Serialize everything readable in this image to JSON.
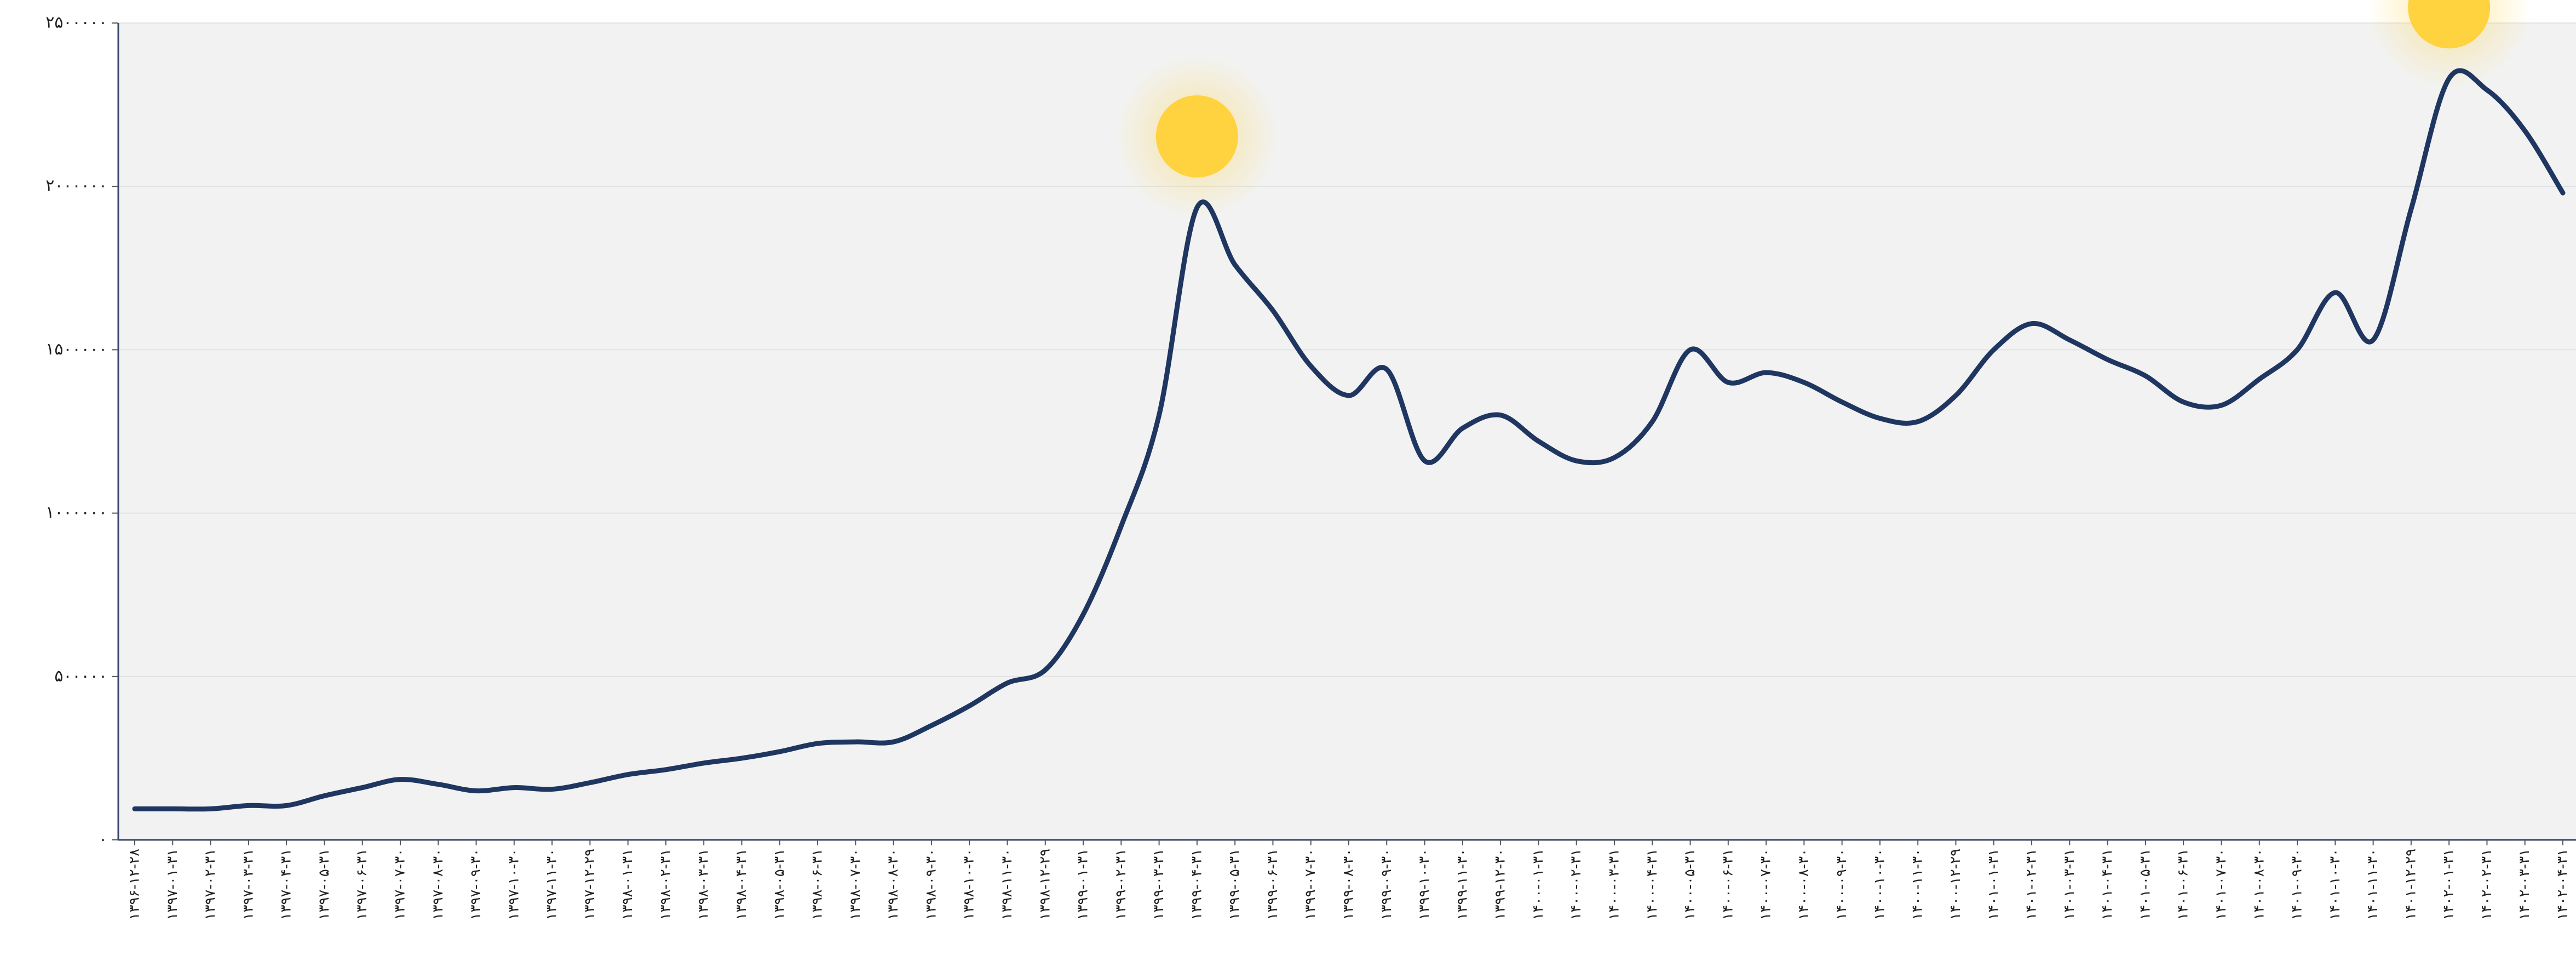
{
  "chart_data": {
    "type": "line",
    "categories": [
      "۱۳۹۶-۱۲-۲۸",
      "۱۳۹۷-۰۱-۳۱",
      "۱۳۹۷-۰۲-۳۱",
      "۱۳۹۷-۰۳-۳۱",
      "۱۳۹۷-۰۴-۳۱",
      "۱۳۹۷-۰۵-۳۱",
      "۱۳۹۷-۰۶-۳۱",
      "۱۳۹۷-۰۷-۳۰",
      "۱۳۹۷-۰۸-۳۰",
      "۱۳۹۷-۰۹-۳۰",
      "۱۳۹۷-۱۰-۳۰",
      "۱۳۹۷-۱۱-۳۰",
      "۱۳۹۷-۱۲-۲۹",
      "۱۳۹۸-۰۱-۳۱",
      "۱۳۹۸-۰۲-۳۱",
      "۱۳۹۸-۰۳-۳۱",
      "۱۳۹۸-۰۴-۳۱",
      "۱۳۹۸-۰۵-۳۱",
      "۱۳۹۸-۰۶-۳۱",
      "۱۳۹۸-۰۷-۳۰",
      "۱۳۹۸-۰۸-۳۰",
      "۱۳۹۸-۰۹-۳۰",
      "۱۳۹۸-۱۰-۳۰",
      "۱۳۹۸-۱۱-۳۰",
      "۱۳۹۸-۱۲-۲۹",
      "۱۳۹۹-۰۱-۳۱",
      "۱۳۹۹-۰۲-۳۱",
      "۱۳۹۹-۰۳-۳۱",
      "۱۳۹۹-۰۴-۳۱",
      "۱۳۹۹-۰۵-۳۱",
      "۱۳۹۹-۰۶-۳۱",
      "۱۳۹۹-۰۷-۳۰",
      "۱۳۹۹-۰۸-۳۰",
      "۱۳۹۹-۰۹-۳۰",
      "۱۳۹۹-۱۰-۳۰",
      "۱۳۹۹-۱۱-۳۰",
      "۱۳۹۹-۱۲-۳۰",
      "۱۴۰۰-۰۱-۳۱",
      "۱۴۰۰-۰۲-۳۱",
      "۱۴۰۰-۰۳-۳۱",
      "۱۴۰۰-۰۴-۳۱",
      "۱۴۰۰-۰۵-۳۱",
      "۱۴۰۰-۰۶-۳۱",
      "۱۴۰۰-۰۷-۳۰",
      "۱۴۰۰-۰۸-۳۰",
      "۱۴۰۰-۰۹-۳۰",
      "۱۴۰۰-۱۰-۳۰",
      "۱۴۰۰-۱۱-۳۰",
      "۱۴۰۰-۱۲-۲۹",
      "۱۴۰۱-۰۱-۳۱",
      "۱۴۰۱-۰۲-۳۱",
      "۱۴۰۱-۰۳-۳۱",
      "۱۴۰۱-۰۴-۳۱",
      "۱۴۰۱-۰۵-۳۱",
      "۱۴۰۱-۰۶-۳۱",
      "۱۴۰۱-۰۷-۳۰",
      "۱۴۰۱-۰۸-۳۰",
      "۱۴۰۱-۰۹-۳۰",
      "۱۴۰۱-۱۰-۳۰",
      "۱۴۰۱-۱۱-۳۰",
      "۱۴۰۱-۱۲-۲۹",
      "۱۴۰۲-۰۱-۳۱",
      "۱۴۰۲-۰۲-۳۱",
      "۱۴۰۲-۰۳-۳۱",
      "۱۴۰۲-۰۴-۳۱"
    ],
    "values": [
      95000,
      95000,
      95000,
      105000,
      105000,
      135000,
      160000,
      185000,
      170000,
      150000,
      160000,
      155000,
      175000,
      200000,
      215000,
      235000,
      250000,
      270000,
      295000,
      300000,
      300000,
      350000,
      410000,
      480000,
      520000,
      690000,
      960000,
      1300000,
      1935000,
      1760000,
      1620000,
      1450000,
      1360000,
      1440000,
      1160000,
      1260000,
      1300000,
      1220000,
      1160000,
      1170000,
      1280000,
      1500000,
      1400000,
      1430000,
      1400000,
      1340000,
      1290000,
      1280000,
      1360000,
      1500000,
      1580000,
      1530000,
      1470000,
      1420000,
      1340000,
      1330000,
      1410000,
      1500000,
      1675000,
      1530000,
      1930000,
      2330000,
      2295000,
      2170000,
      1980000
    ],
    "color": "#1f3660",
    "highlight_color": "#ffd23f",
    "ylim": [
      0,
      2500000
    ],
    "yticks": [
      {
        "value": 0,
        "label": "۰"
      },
      {
        "value": 500000,
        "label": "۵۰۰۰۰۰"
      },
      {
        "value": 1000000,
        "label": "۱۰۰۰۰۰۰"
      },
      {
        "value": 1500000,
        "label": "۱۵۰۰۰۰۰"
      },
      {
        "value": 2000000,
        "label": "۲۰۰۰۰۰۰"
      },
      {
        "value": 2500000,
        "label": "۲۵۰۰۰۰۰"
      }
    ],
    "grid": true
  }
}
